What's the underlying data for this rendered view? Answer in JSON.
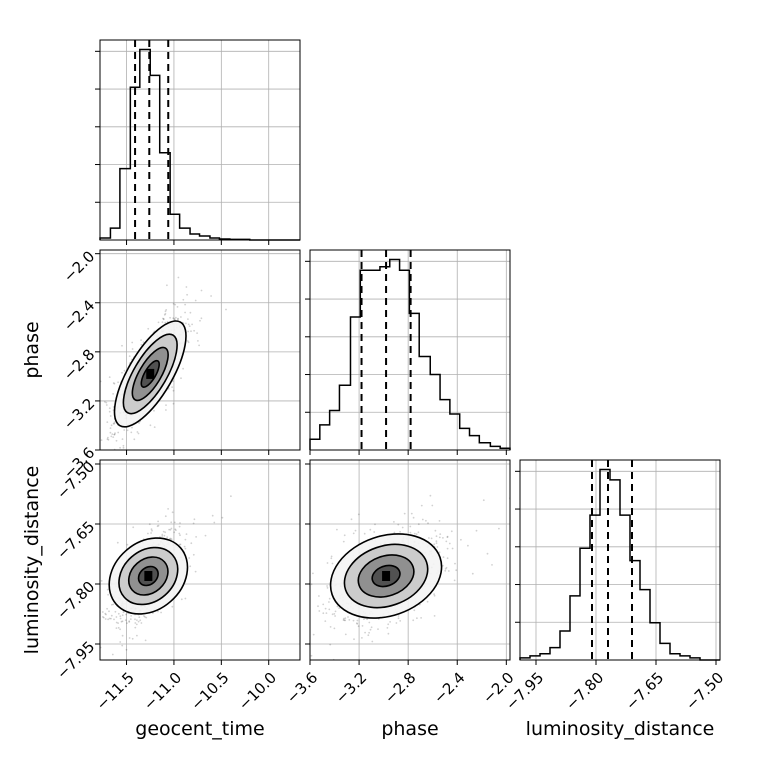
{
  "chart_data": {
    "type": "corner",
    "parameters": [
      "geocent_time",
      "phase",
      "luminosity_distance"
    ],
    "grid": true,
    "axes": {
      "geocent_time": {
        "label": "geocent_time",
        "range": [
          -11.78,
          -9.67
        ],
        "ticks": [
          -11.5,
          -11.0,
          -10.5,
          -10.0
        ],
        "tick_labels": [
          "−11.5",
          "−11.0",
          "−10.5",
          "−10.0"
        ]
      },
      "phase": {
        "label": "phase",
        "range": [
          -3.6,
          -1.97
        ],
        "ticks": [
          -3.6,
          -3.2,
          -2.8,
          -2.4,
          -2.0
        ],
        "tick_labels": [
          "−3.6",
          "−3.2",
          "−2.8",
          "−2.4",
          "−2.0"
        ]
      },
      "luminosity_distance": {
        "label": "luminosity_distance",
        "range": [
          -7.99,
          -7.49
        ],
        "ticks": [
          -7.95,
          -7.8,
          -7.65,
          -7.5
        ],
        "tick_labels": [
          "−7.95",
          "−7.80",
          "−7.65",
          "−7.50"
        ]
      }
    },
    "histograms": [
      {
        "parameter": "geocent_time",
        "bin_edges": [
          -11.78,
          -11.67,
          -11.57,
          -11.46,
          -11.36,
          -11.25,
          -11.15,
          -11.04,
          -10.94,
          -10.83,
          -10.73,
          -10.62,
          -10.52,
          -10.41,
          -10.31,
          -10.2,
          -10.1,
          -9.99,
          -9.89,
          -9.78,
          -9.67
        ],
        "counts": [
          1,
          6,
          36,
          77,
          96,
          83,
          44,
          13,
          6,
          3,
          2,
          1,
          0.5,
          0.3,
          0.3,
          0,
          0,
          0,
          0,
          0
        ],
        "quantiles": [
          -11.41,
          -11.26,
          -11.06
        ]
      },
      {
        "parameter": "phase",
        "bin_edges": [
          -3.6,
          -3.52,
          -3.44,
          -3.36,
          -3.27,
          -3.19,
          -3.11,
          -3.03,
          -2.95,
          -2.87,
          -2.79,
          -2.71,
          -2.62,
          -2.54,
          -2.46,
          -2.38,
          -2.3,
          -2.22,
          -2.13,
          -2.05,
          -1.97
        ],
        "counts": [
          3,
          7,
          11,
          18,
          37,
          50,
          50,
          51,
          53,
          50,
          38,
          26,
          21,
          14,
          10,
          6,
          4,
          2,
          1,
          0.5
        ],
        "quantiles": [
          -3.18,
          -2.98,
          -2.78
        ]
      },
      {
        "parameter": "luminosity_distance",
        "bin_edges": [
          -7.99,
          -7.965,
          -7.94,
          -7.915,
          -7.89,
          -7.865,
          -7.84,
          -7.815,
          -7.79,
          -7.765,
          -7.74,
          -7.715,
          -7.69,
          -7.665,
          -7.64,
          -7.615,
          -7.59,
          -7.565,
          -7.54,
          -7.515,
          -7.49
        ],
        "counts": [
          1,
          2,
          3,
          6,
          14,
          31,
          54,
          70,
          92,
          87,
          70,
          48,
          34,
          18,
          8,
          3,
          2,
          1,
          0,
          0
        ],
        "quantiles": [
          -7.81,
          -7.77,
          -7.71
        ]
      }
    ],
    "joint_2d": [
      {
        "x": "geocent_time",
        "y": "phase",
        "mean": [
          -11.25,
          -2.98
        ],
        "std": [
          0.18,
          0.22
        ],
        "correlation": 0.72
      },
      {
        "x": "geocent_time",
        "y": "luminosity_distance",
        "mean": [
          -11.27,
          -7.78
        ],
        "std": [
          0.17,
          0.055
        ],
        "correlation": 0.6
      },
      {
        "x": "phase",
        "y": "luminosity_distance",
        "mean": [
          -2.98,
          -7.78
        ],
        "std": [
          0.22,
          0.055
        ],
        "correlation": 0.4
      }
    ],
    "contour_levels_sigma": [
      0.5,
      1.0,
      1.5,
      2.0
    ]
  }
}
